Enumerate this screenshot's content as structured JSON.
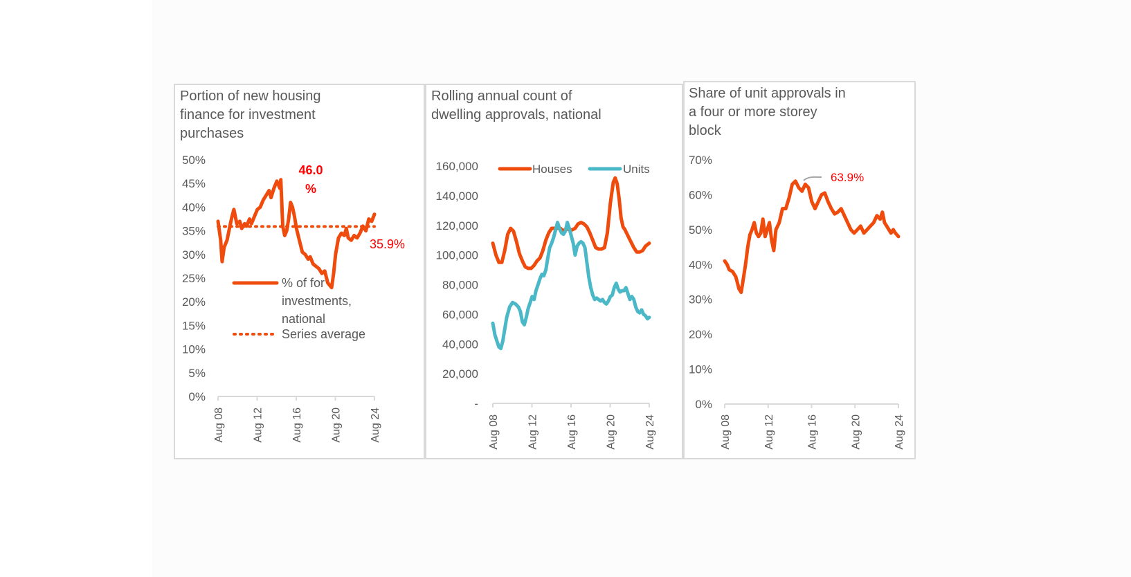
{
  "chart_data": [
    {
      "type": "line",
      "title": "Portion of new housing\nfinance for investment\npurchases",
      "x_ticks": [
        "Aug 08",
        "Aug 12",
        "Aug 16",
        "Aug 20",
        "Aug 24"
      ],
      "x_range": [
        2008.58,
        2024.58
      ],
      "y_ticks": [
        "0%",
        "5%",
        "10%",
        "15%",
        "20%",
        "25%",
        "30%",
        "35%",
        "40%",
        "45%",
        "50%"
      ],
      "ylim": [
        0,
        50
      ],
      "series": [
        {
          "name": "% of for investments, national",
          "color": "#ee4b0c",
          "style": "solid",
          "x": [
            2008.58,
            2008.85,
            2009.0,
            2009.2,
            2009.5,
            2009.8,
            2010.0,
            2010.2,
            2010.5,
            2010.8,
            2011.0,
            2011.3,
            2011.5,
            2011.8,
            2012.0,
            2012.3,
            2012.6,
            2012.9,
            2013.2,
            2013.5,
            2013.8,
            2014.0,
            2014.3,
            2014.6,
            2014.9,
            2015.0,
            2015.2,
            2015.4,
            2015.6,
            2015.8,
            2016.0,
            2016.2,
            2016.4,
            2016.6,
            2016.9,
            2017.2,
            2017.5,
            2017.8,
            2018.0,
            2018.3,
            2018.6,
            2018.9,
            2019.2,
            2019.5,
            2019.8,
            2020.0,
            2020.2,
            2020.4,
            2020.6,
            2020.9,
            2021.2,
            2021.5,
            2021.7,
            2021.9,
            2022.2,
            2022.5,
            2022.8,
            2023.1,
            2023.4,
            2023.7,
            2024.0,
            2024.3,
            2024.58
          ],
          "y": [
            37.0,
            33.0,
            28.5,
            31.5,
            33.0,
            36.0,
            38.0,
            39.5,
            36.5,
            37.0,
            35.5,
            36.5,
            36.0,
            37.5,
            36.5,
            38.0,
            39.5,
            40.0,
            41.5,
            42.5,
            43.5,
            42.0,
            44.0,
            45.5,
            44.0,
            45.8,
            36.0,
            34.0,
            35.0,
            37.5,
            41.0,
            40.0,
            38.0,
            35.5,
            33.0,
            30.5,
            30.0,
            29.0,
            29.5,
            28.0,
            27.5,
            27.0,
            26.0,
            26.5,
            24.0,
            23.5,
            23.0,
            26.0,
            30.0,
            33.5,
            34.5,
            34.0,
            35.5,
            33.5,
            33.0,
            34.0,
            33.5,
            34.5,
            36.0,
            35.0,
            37.5,
            37.0,
            38.5
          ]
        },
        {
          "name": "Series average",
          "color": "#ee4b0c",
          "style": "dotted",
          "x": [
            2008.58,
            2024.58
          ],
          "y": [
            35.9,
            35.9
          ]
        }
      ],
      "annotations": [
        {
          "text": "46.0\n%",
          "color": "#ff0000",
          "bold": true
        },
        {
          "text": "35.9%",
          "color": "#ff0000",
          "bold": false
        }
      ]
    },
    {
      "type": "line",
      "title": "Rolling annual count of\ndwelling approvals, national",
      "x_ticks": [
        "Aug 08",
        "Aug 12",
        "Aug 16",
        "Aug 20",
        "Aug 24"
      ],
      "x_range": [
        2008.58,
        2024.58
      ],
      "y_ticks": [
        "-",
        "20,000",
        "40,000",
        "60,000",
        "80,000",
        "100,000",
        "120,000",
        "140,000",
        "160,000"
      ],
      "ylim": [
        0,
        160000
      ],
      "series": [
        {
          "name": "Houses",
          "color": "#ee4b0c",
          "x": [
            2008.58,
            2008.9,
            2009.2,
            2009.5,
            2009.8,
            2010.1,
            2010.4,
            2010.7,
            2011.0,
            2011.3,
            2011.6,
            2011.9,
            2012.2,
            2012.5,
            2012.8,
            2013.1,
            2013.4,
            2013.7,
            2014.0,
            2014.3,
            2014.6,
            2014.9,
            2015.2,
            2015.5,
            2015.8,
            2016.1,
            2016.4,
            2016.7,
            2017.0,
            2017.3,
            2017.6,
            2017.9,
            2018.2,
            2018.5,
            2018.8,
            2019.1,
            2019.4,
            2019.7,
            2020.0,
            2020.3,
            2020.6,
            2020.9,
            2021.1,
            2021.3,
            2021.5,
            2021.7,
            2021.9,
            2022.1,
            2022.4,
            2022.7,
            2023.0,
            2023.3,
            2023.6,
            2023.9,
            2024.2,
            2024.58
          ],
          "y": [
            108000,
            100000,
            95000,
            95000,
            103000,
            114000,
            118000,
            116000,
            109000,
            101000,
            96000,
            92000,
            91000,
            91000,
            93000,
            96000,
            98000,
            103000,
            110000,
            115000,
            118000,
            118000,
            118000,
            118000,
            116000,
            118000,
            117000,
            117000,
            118000,
            121000,
            122000,
            121000,
            119000,
            115000,
            110000,
            105000,
            104000,
            104000,
            105000,
            115000,
            135000,
            149000,
            152000,
            148000,
            138000,
            125000,
            119000,
            117000,
            113000,
            109000,
            105000,
            102000,
            102000,
            103000,
            106000,
            108000
          ]
        },
        {
          "name": "Units",
          "color": "#4bb8c8",
          "x": [
            2008.58,
            2008.8,
            2009.0,
            2009.2,
            2009.4,
            2009.6,
            2009.8,
            2010.0,
            2010.3,
            2010.6,
            2010.9,
            2011.2,
            2011.4,
            2011.6,
            2011.8,
            2012.0,
            2012.2,
            2012.4,
            2012.6,
            2012.8,
            2013.0,
            2013.2,
            2013.4,
            2013.6,
            2013.8,
            2014.0,
            2014.2,
            2014.4,
            2014.6,
            2014.8,
            2015.0,
            2015.2,
            2015.4,
            2015.6,
            2015.8,
            2016.0,
            2016.2,
            2016.4,
            2016.6,
            2016.8,
            2017.0,
            2017.2,
            2017.4,
            2017.6,
            2017.8,
            2018.0,
            2018.2,
            2018.4,
            2018.6,
            2018.8,
            2019.0,
            2019.2,
            2019.4,
            2019.6,
            2019.8,
            2020.0,
            2020.2,
            2020.4,
            2020.6,
            2020.8,
            2021.0,
            2021.2,
            2021.4,
            2021.6,
            2021.8,
            2022.0,
            2022.2,
            2022.4,
            2022.6,
            2022.8,
            2023.0,
            2023.2,
            2023.4,
            2023.6,
            2023.8,
            2024.0,
            2024.2,
            2024.4,
            2024.58
          ],
          "y": [
            54000,
            46000,
            42000,
            38000,
            37000,
            42000,
            50000,
            58000,
            65000,
            68000,
            67000,
            65000,
            62000,
            55000,
            53000,
            58000,
            64000,
            68000,
            72000,
            70000,
            76000,
            80000,
            84000,
            87000,
            86000,
            90000,
            98000,
            105000,
            108000,
            112000,
            117000,
            122000,
            118000,
            115000,
            114000,
            116000,
            122000,
            118000,
            113000,
            108000,
            100000,
            106000,
            108000,
            109000,
            108000,
            105000,
            95000,
            85000,
            78000,
            73000,
            70000,
            71000,
            70000,
            69000,
            70000,
            68000,
            67000,
            69000,
            72000,
            73000,
            78000,
            81000,
            77000,
            75000,
            76000,
            76000,
            78000,
            74000,
            70000,
            72000,
            70000,
            65000,
            62000,
            61000,
            63000,
            60000,
            59000,
            57000,
            58000
          ]
        }
      ]
    },
    {
      "type": "line",
      "title": "Share of unit approvals in\na four or more storey\nblock",
      "x_ticks": [
        "Aug 08",
        "Aug 12",
        "Aug 16",
        "Aug 20",
        "Aug 24"
      ],
      "x_range": [
        2008.58,
        2024.58
      ],
      "y_ticks": [
        "0%",
        "10%",
        "20%",
        "30%",
        "40%",
        "50%",
        "60%",
        "70%"
      ],
      "ylim": [
        0,
        70
      ],
      "series": [
        {
          "name": "",
          "color": "#ee4b0c",
          "x": [
            2008.58,
            2008.8,
            2009.0,
            2009.3,
            2009.6,
            2009.9,
            2010.1,
            2010.3,
            2010.5,
            2010.7,
            2010.9,
            2011.1,
            2011.3,
            2011.5,
            2011.7,
            2011.9,
            2012.1,
            2012.3,
            2012.5,
            2012.7,
            2012.9,
            2013.1,
            2013.3,
            2013.6,
            2013.9,
            2014.2,
            2014.5,
            2014.8,
            2015.1,
            2015.4,
            2015.7,
            2016.0,
            2016.3,
            2016.6,
            2016.9,
            2017.2,
            2017.5,
            2017.8,
            2018.1,
            2018.4,
            2018.7,
            2019.0,
            2019.3,
            2019.6,
            2019.9,
            2020.2,
            2020.5,
            2020.8,
            2021.1,
            2021.4,
            2021.7,
            2022.0,
            2022.3,
            2022.6,
            2022.9,
            2023.1,
            2023.3,
            2023.5,
            2023.7,
            2023.9,
            2024.1,
            2024.3,
            2024.58
          ],
          "y": [
            41.0,
            40.0,
            38.5,
            38.0,
            36.5,
            33.0,
            32.0,
            36.0,
            40.0,
            45.0,
            48.5,
            50.0,
            52.0,
            49.0,
            48.0,
            49.0,
            53.0,
            48.0,
            50.0,
            52.0,
            47.0,
            44.0,
            50.0,
            52.0,
            56.0,
            56.0,
            59.0,
            63.0,
            63.9,
            62.0,
            61.0,
            63.0,
            62.0,
            58.0,
            56.0,
            58.0,
            60.0,
            60.5,
            58.0,
            56.0,
            54.5,
            55.0,
            56.0,
            54.0,
            52.0,
            50.0,
            49.0,
            50.0,
            51.0,
            49.0,
            50.0,
            51.0,
            52.0,
            54.0,
            53.0,
            55.0,
            52.0,
            51.0,
            50.0,
            49.0,
            50.0,
            49.0,
            48.0
          ]
        }
      ],
      "annotations": [
        {
          "text": "63.9%",
          "color": "#ff0000",
          "bold": false
        }
      ]
    }
  ]
}
